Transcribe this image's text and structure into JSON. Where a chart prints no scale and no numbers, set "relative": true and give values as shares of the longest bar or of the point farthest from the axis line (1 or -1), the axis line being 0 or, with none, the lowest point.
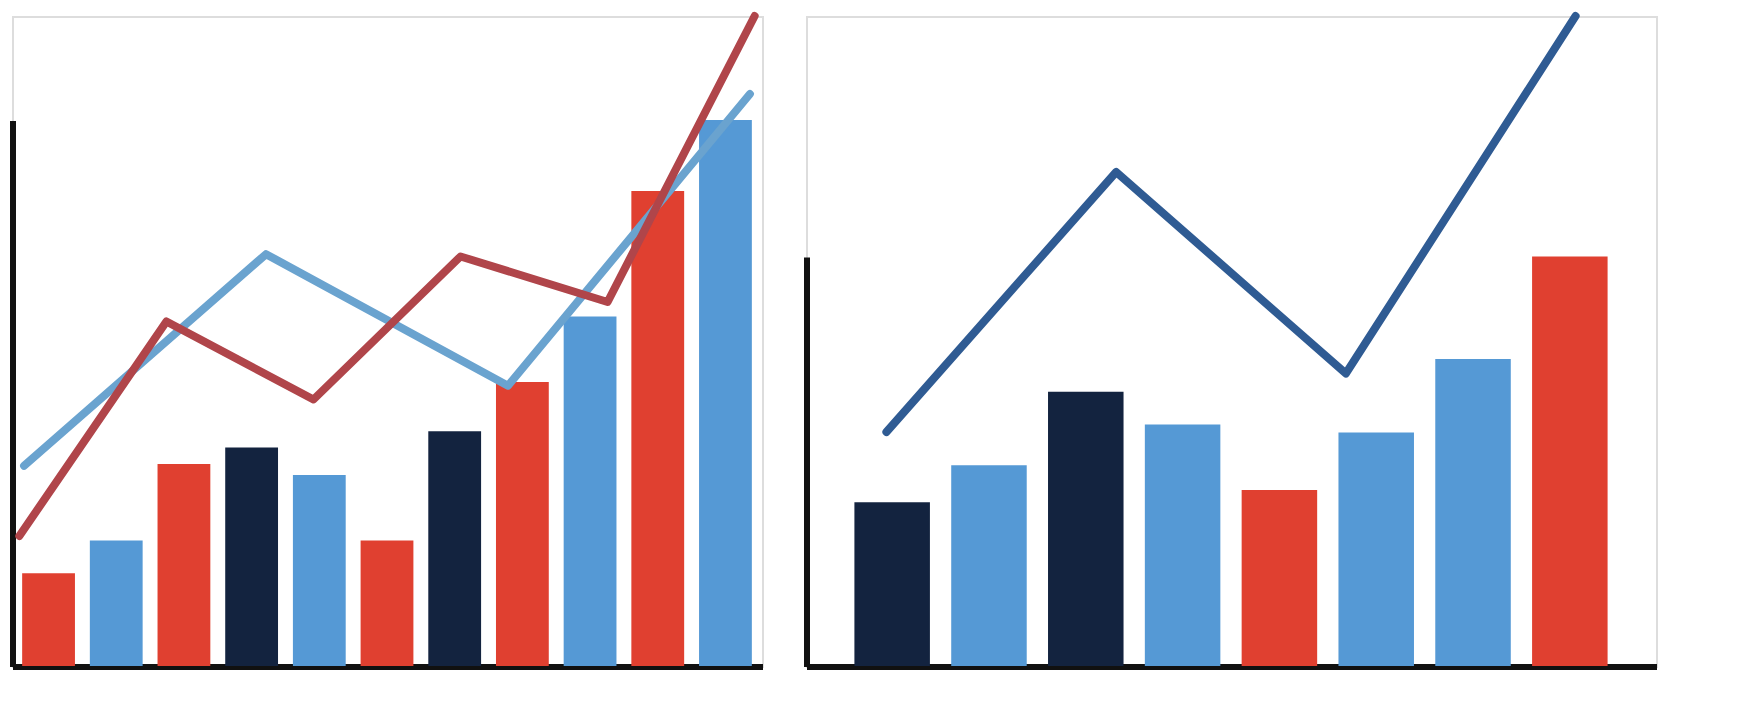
{
  "chart_data": [
    {
      "type": "bar",
      "relative": true,
      "tick_labels": false,
      "grid": false,
      "legend": false,
      "categories": [
        null,
        null,
        null,
        null,
        null,
        null,
        null,
        null,
        null,
        null,
        null
      ],
      "values": [
        0.17,
        0.23,
        0.37,
        0.4,
        0.35,
        0.23,
        0.43,
        0.52,
        0.64,
        0.87,
        1.0
      ],
      "colors": [
        "#e04030",
        "#5599d5",
        "#e04030",
        "#13233f",
        "#5599d5",
        "#e04030",
        "#13233f",
        "#e04030",
        "#5599d5",
        "#e04030",
        "#5599d5"
      ]
    },
    {
      "type": "line",
      "relative": true,
      "tick_labels": false,
      "grid": false,
      "legend": false,
      "categories": [
        null,
        null,
        null,
        null
      ],
      "series": [
        {
          "color": "#6aa3cf",
          "values": [
            0.35,
            0.72,
            0.49,
            1.0
          ]
        }
      ]
    },
    {
      "type": "line",
      "relative": true,
      "tick_labels": false,
      "grid": false,
      "legend": false,
      "categories": [
        null,
        null,
        null,
        null,
        null,
        null
      ],
      "series": [
        {
          "color": "#b0454a",
          "values": [
            0.2,
            0.53,
            0.41,
            0.63,
            0.56,
            1.0
          ]
        }
      ]
    },
    {
      "type": "bar",
      "relative": true,
      "tick_labels": false,
      "grid": false,
      "legend": false,
      "categories": [
        null,
        null,
        null,
        null,
        null,
        null,
        null,
        null
      ],
      "values": [
        0.4,
        0.49,
        0.67,
        0.59,
        0.43,
        0.57,
        0.75,
        1.0
      ],
      "colors": [
        "#13233f",
        "#5599d5",
        "#13233f",
        "#5599d5",
        "#e04030",
        "#5599d5",
        "#5599d5",
        "#e04030"
      ]
    },
    {
      "type": "line",
      "relative": true,
      "tick_labels": false,
      "grid": false,
      "legend": false,
      "categories": [
        null,
        null,
        null,
        null
      ],
      "series": [
        {
          "color": "#2f5b93",
          "values": [
            0.36,
            0.76,
            0.45,
            1.0
          ]
        }
      ]
    }
  ]
}
